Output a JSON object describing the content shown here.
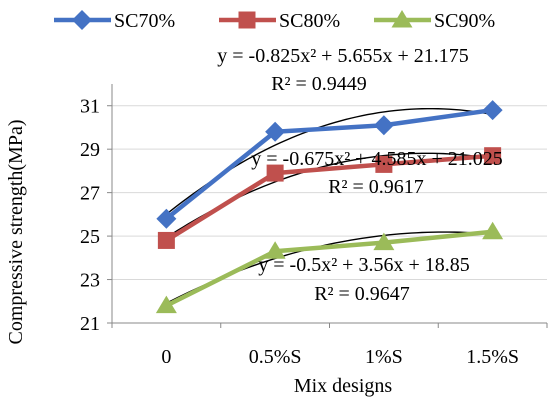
{
  "chart_data": {
    "type": "line",
    "title": "",
    "xlabel": "Mix designs",
    "ylabel": "Compressive strength(MPa)",
    "categories": [
      "0",
      "0.5%S",
      "1%S",
      "1.5%S"
    ],
    "ylim": [
      21,
      32
    ],
    "yticks": [
      21,
      23,
      25,
      27,
      29,
      31
    ],
    "grid": true,
    "legend_position": "top",
    "series": [
      {
        "name": "SC70%",
        "color": "#4472C4",
        "marker": "diamond",
        "values": [
          25.8,
          29.8,
          30.1,
          30.8
        ],
        "trendline": {
          "kind": "polynomial-2",
          "coefficients": [
            -0.825,
            5.655,
            21.175
          ],
          "equation": "y = -0.825x² + 5.655x + 21.175",
          "r2": "R² = 0.9449"
        }
      },
      {
        "name": "SC80%",
        "color": "#C0504D",
        "marker": "square",
        "values": [
          24.8,
          27.9,
          28.3,
          28.7
        ],
        "trendline": {
          "kind": "polynomial-2",
          "coefficients": [
            -0.675,
            4.585,
            21.025
          ],
          "equation": "y = -0.675x² + 4.585x + 21.025",
          "r2": "R² = 0.9617"
        }
      },
      {
        "name": "SC90%",
        "color": "#9BBB59",
        "marker": "triangle",
        "values": [
          21.8,
          24.3,
          24.7,
          25.2
        ],
        "trendline": {
          "kind": "polynomial-2",
          "coefficients": [
            -0.5,
            3.56,
            18.85
          ],
          "equation": "y = -0.5x² + 3.56x + 18.85",
          "r2": "R² = 0.9647"
        }
      }
    ]
  }
}
